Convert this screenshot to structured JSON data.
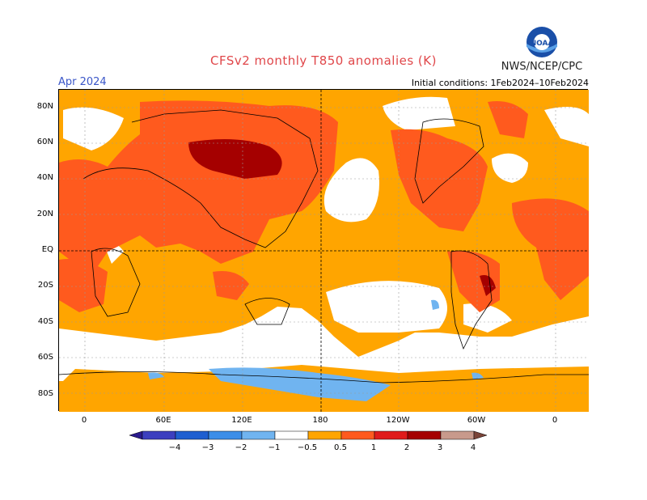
{
  "title": "CFSv2 monthly T850 anomalies (K)",
  "month": "Apr 2024",
  "initial_conditions": "Initial conditions: 1Feb2024–10Feb2024",
  "agency": "NWS/NCEP/CPC",
  "logo_text": "NOAA",
  "lat_labels": [
    "80N",
    "60N",
    "40N",
    "20N",
    "EQ",
    "20S",
    "40S",
    "60S",
    "80S"
  ],
  "lon_labels": [
    "0",
    "60E",
    "120E",
    "180",
    "120W",
    "60W",
    "0"
  ],
  "colorbar": {
    "labels": [
      "−4",
      "−3",
      "−2",
      "−1",
      "−0.5",
      "0.5",
      "1",
      "2",
      "3",
      "4"
    ],
    "colors": [
      "#2a1a8c",
      "#3c3fbf",
      "#1f5fd0",
      "#3c8ee8",
      "#70b4f0",
      "#ffffff",
      "#ffa500",
      "#ff5a1e",
      "#e01a1a",
      "#a50000",
      "#c89a8c",
      "#7a4438"
    ]
  },
  "colors": {
    "title": "#e0474a",
    "month": "#3a56c8",
    "anomaly_05_1": "#ffa500",
    "anomaly_1_2": "#ff5a1e",
    "anomaly_2_3": "#e01a1a",
    "anomaly_3_4": "#a50000",
    "anomaly_neg": "#70b4f0"
  }
}
